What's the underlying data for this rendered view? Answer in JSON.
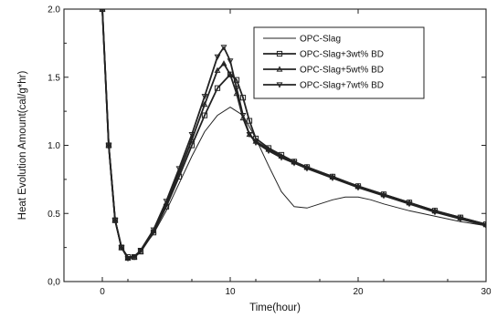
{
  "chart_data": {
    "type": "line",
    "title": "",
    "xlabel": "Time(hour)",
    "ylabel": "Heat Evolution Amount(cal/g*hr)",
    "xlim": [
      -3,
      30
    ],
    "ylim": [
      0.0,
      2.0
    ],
    "xticks": [
      0,
      10,
      20,
      30
    ],
    "xtick_labels": [
      "0",
      "10",
      "20",
      "30"
    ],
    "yticks": [
      0.0,
      0.5,
      1.0,
      1.5,
      2.0
    ],
    "ytick_labels": [
      "0,0",
      "0.5",
      "1.0",
      "1.5",
      "2.0"
    ],
    "grid": false,
    "legend_position": "top-right",
    "series": [
      {
        "name": "OPC-Slag",
        "marker": "none",
        "x": [
          0,
          0.5,
          1,
          1.5,
          2,
          2.5,
          3,
          4,
          5,
          6,
          7,
          8,
          9,
          10,
          11,
          12,
          13,
          14,
          15,
          16,
          17,
          18,
          19,
          20,
          21,
          22,
          24,
          26,
          28,
          30
        ],
        "y": [
          2.0,
          1.0,
          0.45,
          0.25,
          0.18,
          0.19,
          0.23,
          0.35,
          0.52,
          0.72,
          0.92,
          1.1,
          1.22,
          1.28,
          1.22,
          1.05,
          0.85,
          0.66,
          0.55,
          0.54,
          0.57,
          0.6,
          0.62,
          0.62,
          0.6,
          0.57,
          0.52,
          0.48,
          0.44,
          0.41
        ]
      },
      {
        "name": "OPC-Slag+3wt% BD",
        "marker": "square",
        "x": [
          0,
          0.5,
          1,
          1.5,
          2,
          2.5,
          3,
          4,
          5,
          6,
          7,
          8,
          9,
          10,
          10.5,
          11,
          11.5,
          12,
          13,
          14,
          15,
          16,
          18,
          20,
          22,
          24,
          26,
          28,
          30
        ],
        "y": [
          2.0,
          1.0,
          0.45,
          0.25,
          0.18,
          0.18,
          0.22,
          0.36,
          0.55,
          0.77,
          1.0,
          1.22,
          1.42,
          1.52,
          1.48,
          1.35,
          1.18,
          1.05,
          0.98,
          0.93,
          0.88,
          0.84,
          0.77,
          0.7,
          0.64,
          0.58,
          0.52,
          0.47,
          0.42
        ]
      },
      {
        "name": "OPC-Slag+5wt% BD",
        "marker": "triangle-up",
        "x": [
          0,
          0.5,
          1,
          1.5,
          2,
          2.5,
          3,
          4,
          5,
          6,
          7,
          8,
          9,
          9.5,
          10,
          10.5,
          11,
          11.5,
          12,
          13,
          14,
          15,
          16,
          18,
          20,
          22,
          24,
          26,
          28,
          30
        ],
        "y": [
          2.0,
          1.0,
          0.45,
          0.25,
          0.17,
          0.18,
          0.22,
          0.37,
          0.57,
          0.8,
          1.04,
          1.3,
          1.55,
          1.6,
          1.52,
          1.38,
          1.2,
          1.08,
          1.03,
          0.97,
          0.92,
          0.88,
          0.84,
          0.77,
          0.7,
          0.64,
          0.58,
          0.52,
          0.47,
          0.42
        ]
      },
      {
        "name": "OPC-Slag+7wt% BD",
        "marker": "triangle-down",
        "x": [
          0,
          0.5,
          1,
          1.5,
          2,
          2.5,
          3,
          4,
          5,
          6,
          7,
          8,
          9,
          9.5,
          10,
          10.5,
          11,
          11.5,
          12,
          13,
          14,
          15,
          16,
          18,
          20,
          22,
          24,
          26,
          28,
          30
        ],
        "y": [
          2.0,
          1.0,
          0.45,
          0.25,
          0.17,
          0.18,
          0.23,
          0.38,
          0.59,
          0.83,
          1.08,
          1.36,
          1.65,
          1.72,
          1.62,
          1.42,
          1.22,
          1.08,
          1.02,
          0.96,
          0.91,
          0.87,
          0.83,
          0.76,
          0.69,
          0.63,
          0.57,
          0.51,
          0.46,
          0.41
        ]
      }
    ]
  }
}
